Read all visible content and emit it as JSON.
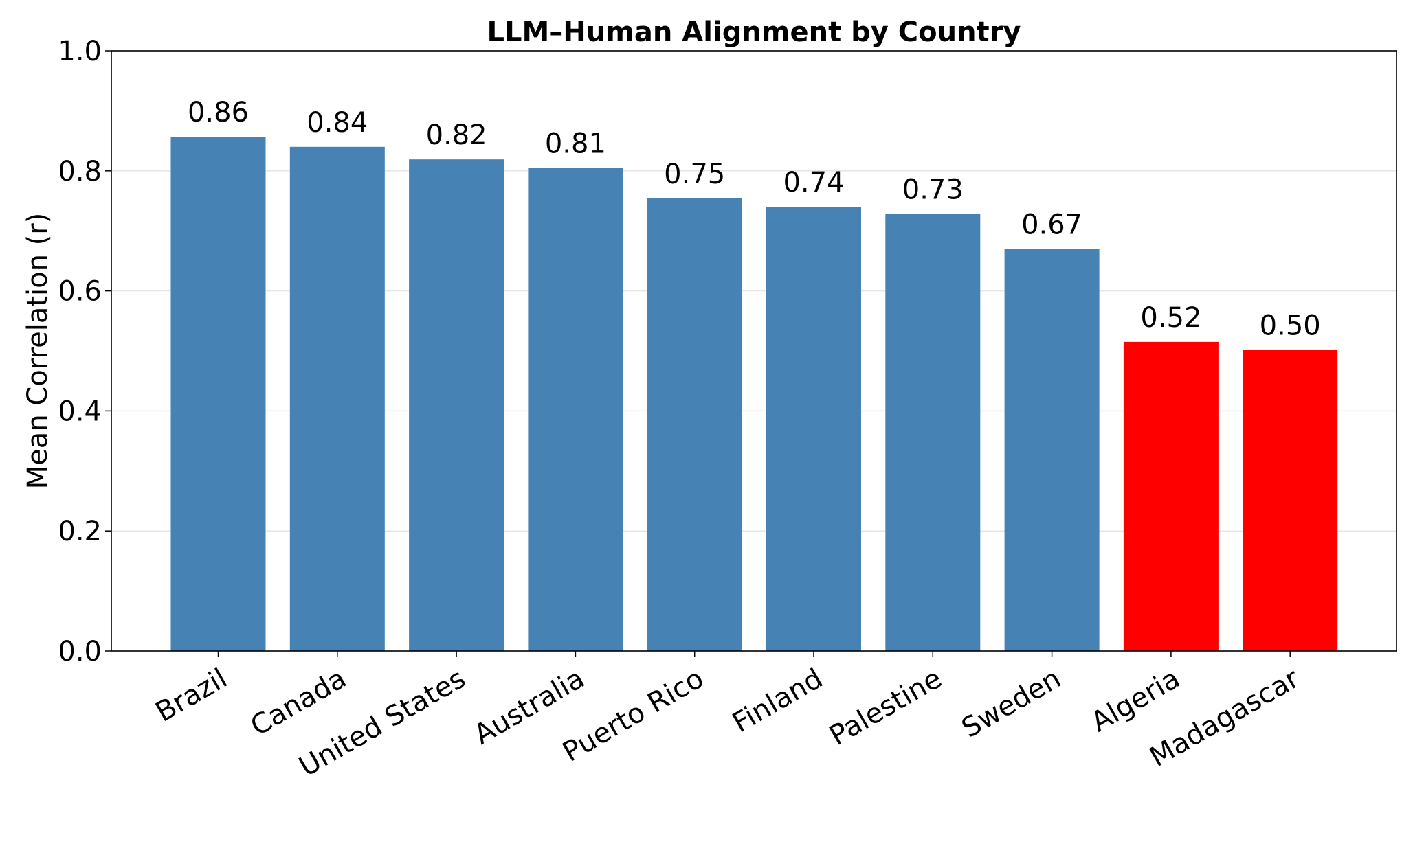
{
  "chart_data": {
    "type": "bar",
    "title": "LLM–Human Alignment by Country",
    "xlabel": "",
    "ylabel": "Mean Correlation (r)",
    "ylim": [
      0,
      1.0
    ],
    "yticks": [
      "0.0",
      "0.2",
      "0.4",
      "0.6",
      "0.8",
      "1.0"
    ],
    "ytick_values": [
      0.0,
      0.2,
      0.4,
      0.6,
      0.8,
      1.0
    ],
    "grid": true,
    "categories": [
      "Brazil",
      "Canada",
      "United States",
      "Australia",
      "Puerto Rico",
      "Finland",
      "Palestine",
      "Sweden",
      "Algeria",
      "Madagascar"
    ],
    "values": [
      0.857,
      0.84,
      0.819,
      0.805,
      0.754,
      0.74,
      0.728,
      0.67,
      0.515,
      0.502
    ],
    "value_labels": [
      "0.86",
      "0.84",
      "0.82",
      "0.81",
      "0.75",
      "0.74",
      "0.73",
      "0.67",
      "0.52",
      "0.50"
    ],
    "colors": [
      "#4682b4",
      "#4682b4",
      "#4682b4",
      "#4682b4",
      "#4682b4",
      "#4682b4",
      "#4682b4",
      "#4682b4",
      "#ff0000",
      "#ff0000"
    ]
  }
}
